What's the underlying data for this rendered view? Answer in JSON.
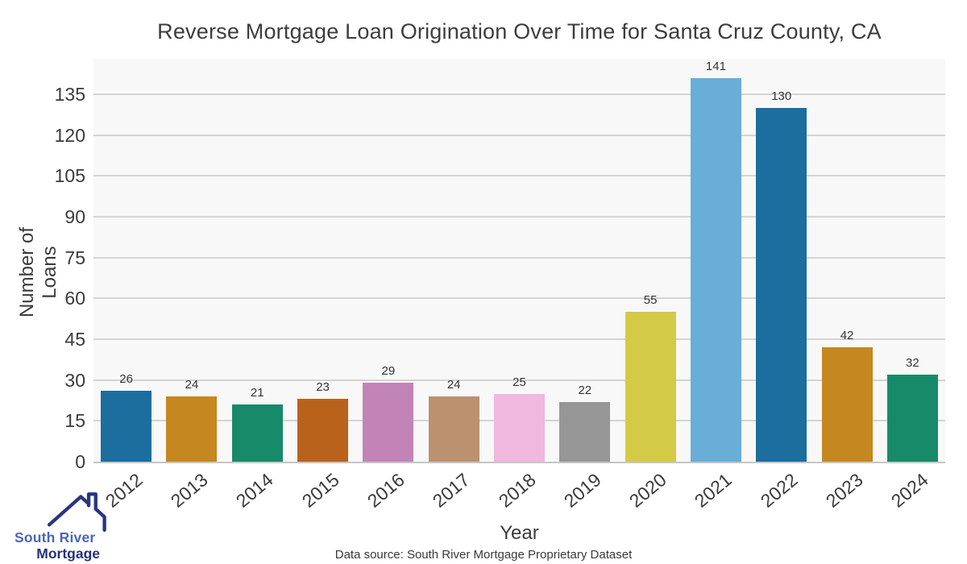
{
  "title": "Reverse Mortgage Loan Origination Over Time for Santa Cruz County, CA",
  "y_axis": {
    "label": "Number of Loans"
  },
  "x_axis": {
    "label": "Year"
  },
  "footer": {
    "source": "Data source: South River Mortgage Proprietary Dataset"
  },
  "logo": {
    "line1": "South River",
    "line2": "Mortgage"
  },
  "chart_data": {
    "type": "bar",
    "title": "Reverse Mortgage Loan Origination Over Time for Santa Cruz County, CA",
    "xlabel": "Year",
    "ylabel": "Number of Loans",
    "categories": [
      "2012",
      "2013",
      "2014",
      "2015",
      "2016",
      "2017",
      "2018",
      "2019",
      "2020",
      "2021",
      "2022",
      "2023",
      "2024"
    ],
    "values": [
      26,
      24,
      21,
      23,
      29,
      24,
      25,
      22,
      55,
      141,
      130,
      42,
      32
    ],
    "bar_colors": [
      "#1b6e9e",
      "#c5871f",
      "#178a6a",
      "#b9621c",
      "#c283b6",
      "#bb916f",
      "#f0b7df",
      "#969696",
      "#d3ca46",
      "#68aed6",
      "#1b6e9e",
      "#c5871f",
      "#178a6a"
    ],
    "value_labels": true,
    "yticks": [
      0,
      15,
      30,
      45,
      60,
      75,
      90,
      105,
      120,
      135
    ],
    "ylim": [
      0,
      148
    ],
    "grid": true,
    "legend": false,
    "style": {
      "plot_background": "#f8f8f8",
      "grid_color": "#d4d4d4",
      "axis_line_color": "#c6c6c6",
      "tick_text_color": "#3b3b3b",
      "value_label_color": "#333333",
      "logo_roof_color": "#2a357f"
    }
  }
}
